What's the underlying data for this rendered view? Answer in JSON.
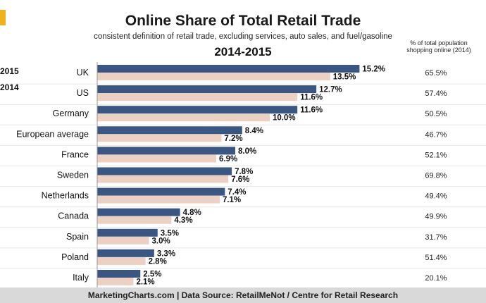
{
  "chart_data": {
    "type": "bar",
    "orientation": "horizontal",
    "title": "Online Share of Total Retail Trade",
    "subtitle": "consistent definition of retail trade, excluding services, auto sales, and fuel/gasoline",
    "period": "2014-2015",
    "categories": [
      "UK",
      "US",
      "Germany",
      "European average",
      "France",
      "Sweden",
      "Netherlands",
      "Canada",
      "Spain",
      "Poland",
      "Italy"
    ],
    "series": [
      {
        "name": "2015",
        "values": [
          15.2,
          12.7,
          11.6,
          8.4,
          8.0,
          7.8,
          7.4,
          4.8,
          3.5,
          3.3,
          2.5
        ],
        "labels": [
          "15.2%",
          "12.7%",
          "11.6%",
          "8.4%",
          "8.0%",
          "7.8%",
          "7.4%",
          "4.8%",
          "3.5%",
          "3.3%",
          "2.5%"
        ]
      },
      {
        "name": "2014",
        "values": [
          13.5,
          11.6,
          10.0,
          7.2,
          6.9,
          7.6,
          7.1,
          4.3,
          3.0,
          2.8,
          2.1
        ],
        "labels": [
          "13.5%",
          "11.6%",
          "10.0%",
          "7.2%",
          "6.9%",
          "7.6%",
          "7.1%",
          "4.3%",
          "3.0%",
          "2.8%",
          "2.1%"
        ]
      }
    ],
    "side_column": {
      "header": "% of total population shopping online (2014)",
      "values": [
        "65.5%",
        "57.4%",
        "50.5%",
        "46.7%",
        "52.1%",
        "69.8%",
        "49.4%",
        "49.9%",
        "31.7%",
        "51.4%",
        "20.1%"
      ]
    },
    "xlim": [
      0,
      16
    ],
    "colors": {
      "2015": "#3a5683",
      "2014": "#ecd0c1",
      "separator": "#e6e6e6"
    },
    "legend_position": "top-left"
  },
  "legend": {
    "a": "2015",
    "b": "2014"
  },
  "footer": "MarketingCharts.com | Data Source: RetailMeNot / Centre for Retail Research"
}
